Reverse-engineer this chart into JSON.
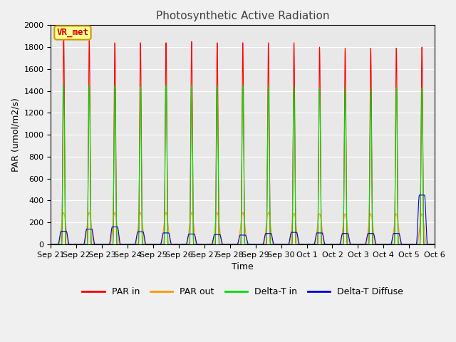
{
  "title": "Photosynthetic Active Radiation",
  "ylabel": "PAR (umol/m2/s)",
  "xlabel": "Time",
  "ylim": [
    0,
    2000
  ],
  "xlim": [
    0,
    15
  ],
  "annotation_text": "VR_met",
  "annotation_color": "#cc0000",
  "annotation_bg": "#ffff99",
  "plot_bg": "#e8e8e8",
  "fig_bg": "#f0f0f0",
  "grid_color": "#ffffff",
  "colors": {
    "PAR in": "#ff0000",
    "PAR out": "#ff9900",
    "Delta-T in": "#00dd00",
    "Delta-T Diffuse": "#0000dd"
  },
  "par_in_peaks": [
    1920,
    1860,
    1840,
    1840,
    1840,
    1850,
    1840,
    1840,
    1840,
    1840,
    1800,
    1790,
    1790,
    1790,
    1800
  ],
  "par_out_peaks": [
    290,
    290,
    290,
    290,
    290,
    290,
    290,
    290,
    290,
    285,
    280,
    280,
    280,
    280,
    280
  ],
  "delta_t_in_peaks": [
    1460,
    1450,
    1450,
    1440,
    1450,
    1450,
    1440,
    1450,
    1440,
    1440,
    1420,
    1420,
    1420,
    1430,
    1430
  ],
  "diffuse_peaks": [
    120,
    140,
    160,
    115,
    105,
    95,
    90,
    85,
    100,
    110,
    105,
    100,
    100,
    100,
    450
  ],
  "n_days": 15,
  "tick_labels": [
    "Sep 21",
    "Sep 22",
    "Sep 23",
    "Sep 24",
    "Sep 25",
    "Sep 26",
    "Sep 27",
    "Sep 28",
    "Sep 29",
    "Sep 30",
    "Oct 1",
    "Oct 2",
    "Oct 3",
    "Oct 4",
    "Oct 5",
    "Oct 6"
  ]
}
